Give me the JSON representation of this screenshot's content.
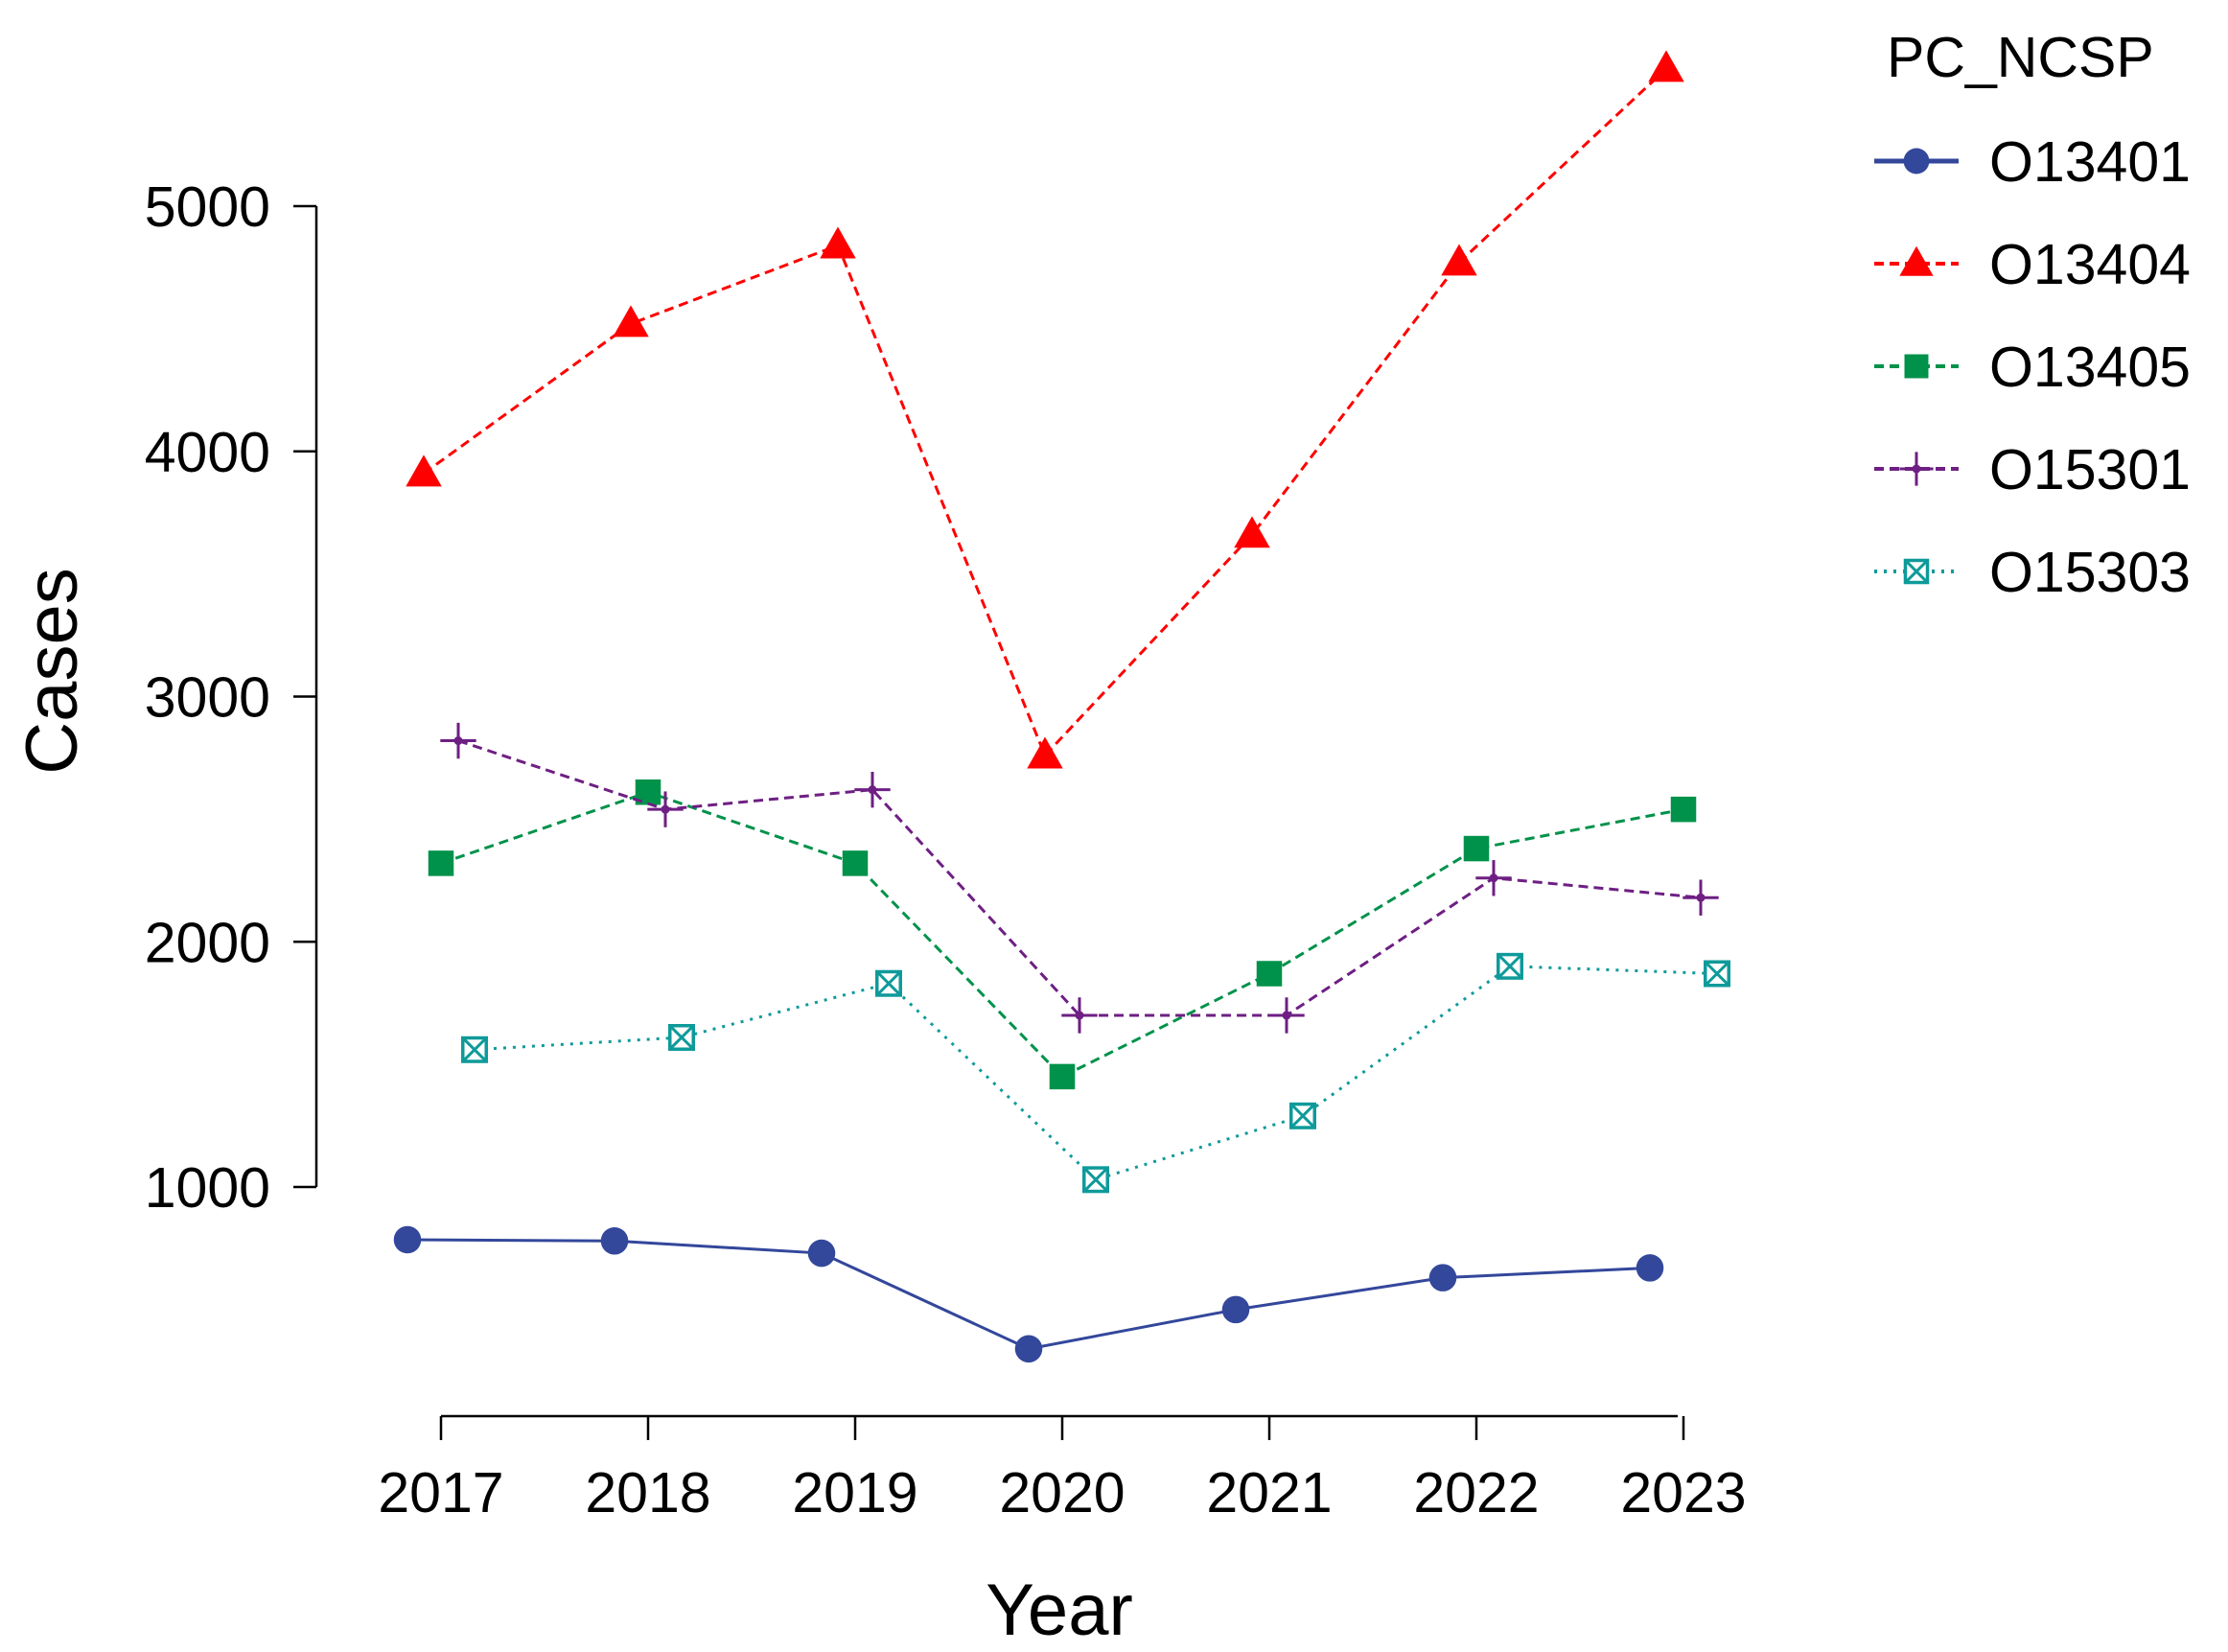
{
  "chart_data": {
    "type": "line",
    "title": "",
    "xlabel": "Year",
    "ylabel": "Cases",
    "x": [
      2017,
      2018,
      2019,
      2020,
      2021,
      2022,
      2023
    ],
    "x_tick_labels": [
      "2017",
      "2018",
      "2019",
      "2020",
      "2021",
      "2022",
      "2023"
    ],
    "y_ticks": [
      1000,
      2000,
      3000,
      4000,
      5000
    ],
    "y_tick_labels": [
      "1000",
      "2000",
      "3000",
      "4000",
      "5000"
    ],
    "ylim": [
      1000,
      5000
    ],
    "grid": false,
    "legend": {
      "title": "PC_NCSP",
      "placement": "top-right outside"
    },
    "series": [
      {
        "name": "O13401",
        "color": "#33479b",
        "marker": "circle",
        "line_style": "solid",
        "values": [
          785,
          780,
          730,
          340,
          500,
          630,
          670
        ]
      },
      {
        "name": "O13404",
        "color": "#ff0000",
        "marker": "triangle",
        "line_style": "dashed",
        "values": [
          3910,
          4520,
          4840,
          2760,
          3660,
          4770,
          5560
        ]
      },
      {
        "name": "O13405",
        "color": "#00924a",
        "marker": "square",
        "line_style": "dashed",
        "values": [
          2320,
          2610,
          2320,
          1450,
          1870,
          2380,
          2540
        ]
      },
      {
        "name": "O15301",
        "color": "#6e1f83",
        "marker": "plus",
        "line_style": "dashed",
        "values": [
          2820,
          2540,
          2620,
          1700,
          1700,
          2260,
          2180
        ]
      },
      {
        "name": "O15303",
        "color": "#0f9a9a",
        "marker": "boxx",
        "line_style": "dotted",
        "values": [
          1560,
          1610,
          1830,
          1030,
          1290,
          1900,
          1870
        ]
      }
    ]
  }
}
